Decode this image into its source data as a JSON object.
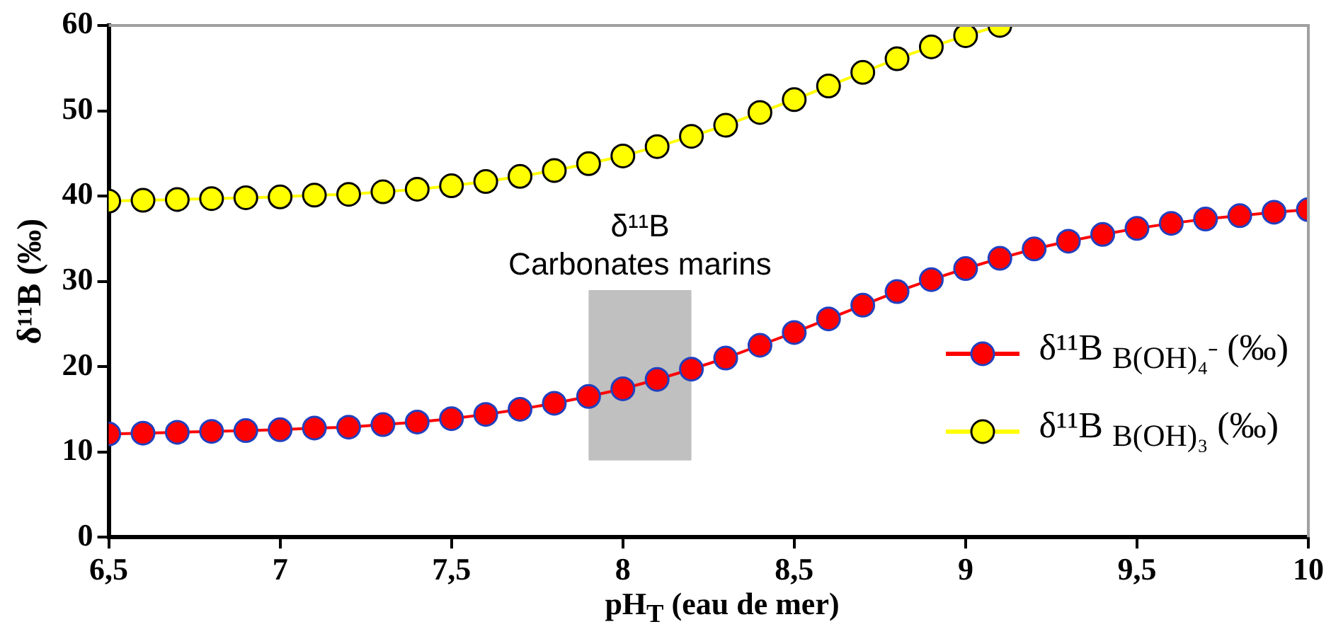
{
  "chart_data": {
    "type": "line",
    "ylabel": "δ¹¹B (‰)",
    "xlabel": "pH$_{T}$ (eau de mer)",
    "x": [
      6.5,
      6.6,
      6.7,
      6.8,
      6.9,
      7.0,
      7.1,
      7.2,
      7.3,
      7.4,
      7.5,
      7.6,
      7.7,
      7.8,
      7.9,
      8.0,
      8.1,
      8.2,
      8.3,
      8.4,
      8.5,
      8.6,
      8.7,
      8.8,
      8.9,
      9.0,
      9.1,
      9.2,
      9.3,
      9.4,
      9.5,
      9.6,
      9.7,
      9.8,
      9.9,
      10.0
    ],
    "series": [
      {
        "name": "δ¹¹B $_{B(OH)₄⁻}$ (‰)",
        "color": "#ff0000",
        "values": [
          12.1,
          12.2,
          12.3,
          12.4,
          12.5,
          12.6,
          12.8,
          12.9,
          13.2,
          13.5,
          13.9,
          14.4,
          15.0,
          15.7,
          16.5,
          17.4,
          18.5,
          19.7,
          21.0,
          22.5,
          24.0,
          25.6,
          27.2,
          28.8,
          30.2,
          31.5,
          32.7,
          33.8,
          34.7,
          35.5,
          36.2,
          36.8,
          37.3,
          37.7,
          38.1,
          38.4
        ]
      },
      {
        "name": "δ¹¹B $_{B(OH)₃}$ (‰)",
        "color": "#ffff00",
        "x": [
          6.5,
          6.6,
          6.7,
          6.8,
          6.9,
          7.0,
          7.1,
          7.2,
          7.3,
          7.4,
          7.5,
          7.6,
          7.7,
          7.8,
          7.9,
          8.0,
          8.1,
          8.2,
          8.3,
          8.4,
          8.5,
          8.6,
          8.7,
          8.8,
          8.9,
          9.0,
          9.1
        ],
        "values": [
          39.4,
          39.5,
          39.6,
          39.7,
          39.8,
          39.9,
          40.1,
          40.2,
          40.5,
          40.8,
          41.2,
          41.7,
          42.3,
          43.0,
          43.8,
          44.7,
          45.8,
          47.0,
          48.3,
          49.8,
          51.3,
          52.9,
          54.5,
          56.1,
          57.5,
          58.8,
          60.0
        ]
      }
    ],
    "xlim": [
      6.5,
      10
    ],
    "xticks": [
      {
        "value": 6.5,
        "label": "6,5"
      },
      7,
      {
        "value": 7.5,
        "label": "7,5"
      },
      8,
      {
        "value": 8.5,
        "label": "8,5"
      },
      9,
      {
        "value": 9.5,
        "label": "9,5"
      },
      10
    ],
    "ylim": [
      0,
      60
    ],
    "yticks": [
      0,
      10,
      20,
      30,
      40,
      50,
      60
    ],
    "bands": [
      {
        "axis": "x",
        "from": 7.9,
        "to": 8.2,
        "label": "δ¹¹B\nCarbonates marins",
        "color": "#c0c0c0"
      }
    ],
    "grid": false,
    "legend": "bottom right",
    "marker": "circle",
    "line_style": "solid"
  }
}
